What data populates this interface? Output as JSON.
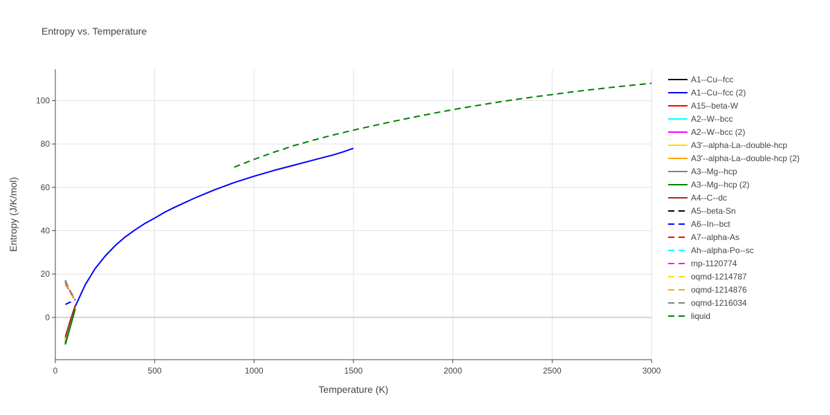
{
  "chart_data": {
    "type": "line",
    "title": "Entropy vs. Temperature",
    "xlabel": "Temperature (K)",
    "ylabel": "Entropy (J/K/mol)",
    "xlim": [
      0,
      3000
    ],
    "ylim": [
      -19.5,
      114.5
    ],
    "x_ticks": [
      0,
      500,
      1000,
      1500,
      2000,
      2500,
      3000
    ],
    "y_ticks": [
      0,
      20,
      40,
      60,
      80,
      100
    ],
    "grid": true,
    "legend_position": "right",
    "series": [
      {
        "name": "A1--Cu--fcc",
        "color": "#000000",
        "dash": "solid",
        "x": [
          50,
          75,
          100
        ],
        "y": [
          -12,
          -4,
          4
        ]
      },
      {
        "name": "A1--Cu--fcc (2)",
        "color": "#0000ff",
        "dash": "solid",
        "x": [
          100,
          150,
          200,
          250,
          300,
          350,
          400,
          450,
          500,
          550,
          600,
          700,
          800,
          900,
          1000,
          1100,
          1200,
          1300,
          1400,
          1450,
          1500
        ],
        "y": [
          5,
          15,
          22.5,
          28.2,
          33,
          37,
          40.3,
          43.3,
          45.8,
          48.5,
          50.8,
          55,
          58.8,
          62.2,
          65.1,
          67.8,
          70.2,
          72.6,
          75,
          76.4,
          78
        ]
      },
      {
        "name": "A15--beta-W",
        "color": "#ff0000",
        "dash": "solid",
        "x": [
          50,
          75,
          100
        ],
        "y": [
          -10,
          -2,
          5
        ]
      },
      {
        "name": "A2--W--bcc",
        "color": "#00ffff",
        "dash": "solid",
        "x": [
          50,
          75,
          100
        ],
        "y": [
          -11,
          -3,
          4.5
        ]
      },
      {
        "name": "A2--W--bcc (2)",
        "color": "#ff00ff",
        "dash": "solid",
        "x": [
          50,
          75,
          100
        ],
        "y": [
          -11.5,
          -3.5,
          4.2
        ]
      },
      {
        "name": "A3'--alpha-La--double-hcp",
        "color": "#ffd700",
        "dash": "solid",
        "x": [
          50,
          75,
          100
        ],
        "y": [
          -10.5,
          -2.5,
          4.8
        ]
      },
      {
        "name": "A3'--alpha-La--double-hcp (2)",
        "color": "#ffa500",
        "dash": "solid",
        "x": [
          50,
          75,
          100
        ],
        "y": [
          -9.5,
          -2,
          5
        ]
      },
      {
        "name": "A3--Mg--hcp",
        "color": "#808080",
        "dash": "solid",
        "x": [
          50,
          75,
          100
        ],
        "y": [
          -12,
          -4,
          4
        ]
      },
      {
        "name": "A3--Mg--hcp (2)",
        "color": "#008000",
        "dash": "solid",
        "x": [
          50,
          75,
          100
        ],
        "y": [
          -12.5,
          -4.5,
          3.8
        ]
      },
      {
        "name": "A4--C--dc",
        "color": "#a52a2a",
        "dash": "solid",
        "x": [
          50,
          75,
          100
        ],
        "y": [
          -9,
          -1.5,
          5.5
        ]
      },
      {
        "name": "A5--beta-Sn",
        "color": "#000000",
        "dash": "dash",
        "x": [
          50,
          75,
          100
        ],
        "y": [
          17,
          12,
          8
        ]
      },
      {
        "name": "A6--In--bct",
        "color": "#0000ff",
        "dash": "dash",
        "x": [
          50,
          75,
          100
        ],
        "y": [
          6,
          7,
          8
        ]
      },
      {
        "name": "A7--alpha-As",
        "color": "#ff0000",
        "dash": "dash",
        "x": [
          50,
          75,
          100
        ],
        "y": [
          15.5,
          11.5,
          7.8
        ]
      },
      {
        "name": "Ah--alpha-Po--sc",
        "color": "#00ffff",
        "dash": "dash",
        "x": [
          50,
          75,
          100
        ],
        "y": [
          16.5,
          12,
          8
        ]
      },
      {
        "name": "mp-1120774",
        "color": "#ff00ff",
        "dash": "dash",
        "x": [
          50,
          75,
          100
        ],
        "y": [
          16,
          11.8,
          7.9
        ]
      },
      {
        "name": "oqmd-1214787",
        "color": "#ffd700",
        "dash": "dash",
        "x": [
          50,
          75,
          100
        ],
        "y": [
          16.2,
          12,
          8
        ]
      },
      {
        "name": "oqmd-1214876",
        "color": "#ffa500",
        "dash": "dash",
        "x": [
          50,
          75,
          100
        ],
        "y": [
          15.8,
          11.7,
          7.8
        ]
      },
      {
        "name": "oqmd-1216034",
        "color": "#808080",
        "dash": "dash",
        "x": [
          50,
          75,
          100
        ],
        "y": [
          16.8,
          12.2,
          8.1
        ]
      },
      {
        "name": "liquid",
        "color": "#008000",
        "dash": "dash",
        "x": [
          900,
          1000,
          1100,
          1200,
          1300,
          1400,
          1500,
          1600,
          1700,
          1800,
          1900,
          2000,
          2100,
          2200,
          2300,
          2400,
          2500,
          2600,
          2700,
          2800,
          2900,
          3000
        ],
        "y": [
          69.3,
          72.9,
          76.2,
          79.2,
          81.8,
          84.2,
          86.4,
          88.4,
          90.4,
          92.3,
          94.1,
          95.8,
          97.4,
          98.9,
          100.3,
          101.6,
          102.8,
          104,
          105.1,
          106.1,
          107.1,
          108
        ]
      }
    ]
  }
}
